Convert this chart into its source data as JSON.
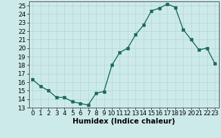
{
  "x": [
    0,
    1,
    2,
    3,
    4,
    5,
    6,
    7,
    8,
    9,
    10,
    11,
    12,
    13,
    14,
    15,
    16,
    17,
    18,
    19,
    20,
    21,
    22,
    23
  ],
  "y": [
    16.3,
    15.5,
    15.0,
    14.2,
    14.2,
    13.7,
    13.5,
    13.3,
    14.7,
    14.9,
    18.0,
    19.5,
    20.0,
    21.6,
    22.7,
    24.4,
    24.7,
    25.2,
    24.8,
    22.2,
    21.0,
    19.8,
    20.0,
    18.2
  ],
  "xlabel": "Humidex (Indice chaleur)",
  "ylim": [
    13,
    25.5
  ],
  "xlim": [
    -0.5,
    23.5
  ],
  "yticks": [
    13,
    14,
    15,
    16,
    17,
    18,
    19,
    20,
    21,
    22,
    23,
    24,
    25
  ],
  "xticks": [
    0,
    1,
    2,
    3,
    4,
    5,
    6,
    7,
    8,
    9,
    10,
    11,
    12,
    13,
    14,
    15,
    16,
    17,
    18,
    19,
    20,
    21,
    22,
    23
  ],
  "line_color": "#1a6b5a",
  "marker_color": "#1a6b5a",
  "bg_color": "#cdeaea",
  "grid_color": "#b8d8d8",
  "xlabel_fontsize": 7.5,
  "tick_fontsize": 6.5,
  "line_width": 1.0,
  "marker_size": 2.5
}
